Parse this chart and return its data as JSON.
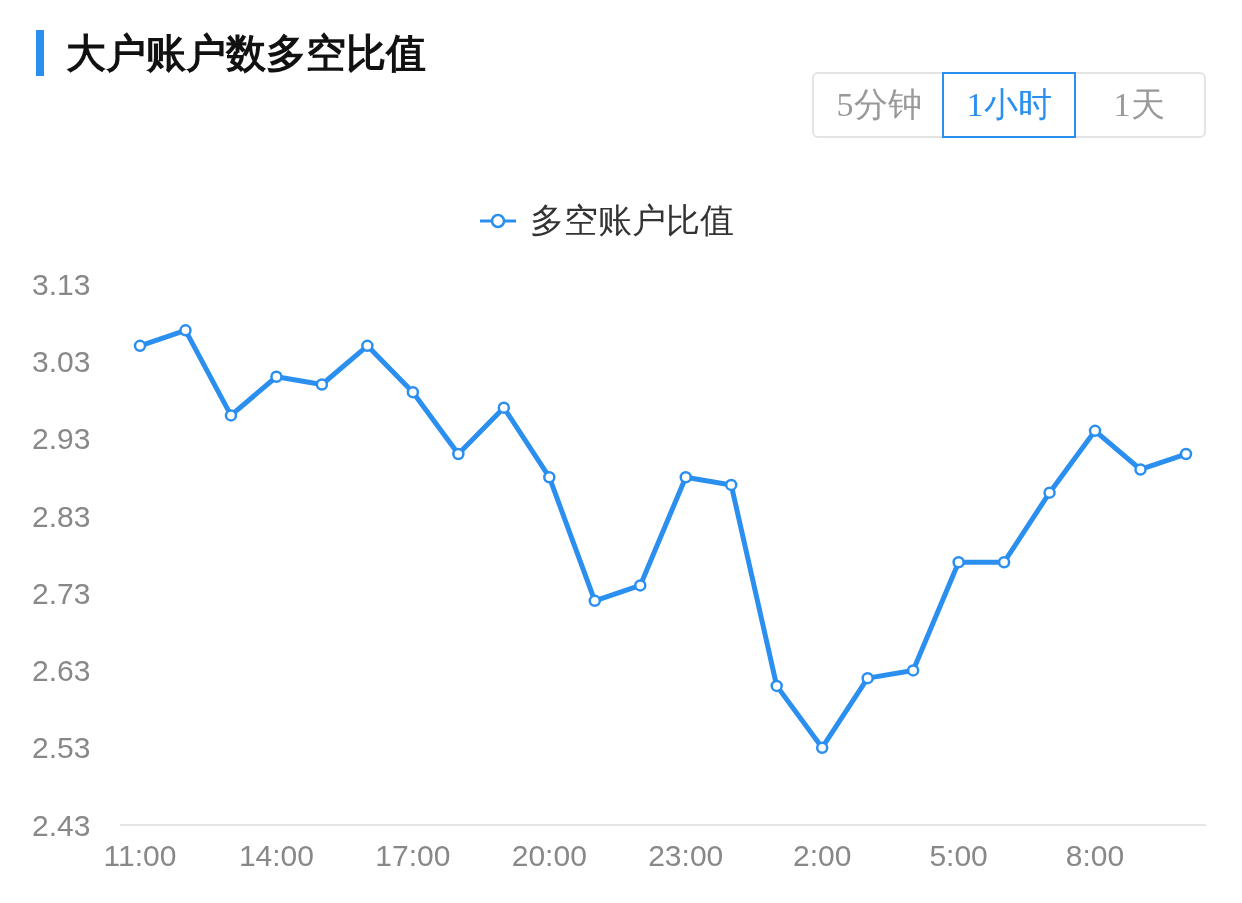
{
  "chart_data": {
    "type": "line",
    "title": "大户账户数多空比值",
    "annotations": [
      "5分钟",
      "1小时",
      "1天"
    ],
    "categories": [
      "11:00",
      null,
      null,
      "14:00",
      null,
      null,
      "17:00",
      null,
      null,
      "20:00",
      null,
      null,
      "23:00",
      null,
      null,
      "2:00",
      null,
      null,
      "5:00",
      null,
      null,
      "8:00",
      null,
      null
    ],
    "series": [
      {
        "name": "多空账户比值",
        "color": "#2b8ff0",
        "values": [
          3.05,
          3.07,
          2.96,
          3.01,
          3.0,
          3.05,
          2.99,
          2.91,
          2.97,
          2.88,
          2.72,
          2.74,
          2.88,
          2.87,
          2.61,
          2.53,
          2.62,
          2.63,
          2.77,
          2.77,
          2.86,
          2.94,
          2.89,
          2.91
        ]
      }
    ],
    "ylim": [
      2.43,
      3.13
    ],
    "yticks": [
      2.43,
      2.53,
      2.63,
      2.73,
      2.83,
      2.93,
      3.03,
      3.13
    ],
    "grid": false,
    "legend": "top",
    "marker": "circle",
    "line_style": "solid"
  }
}
